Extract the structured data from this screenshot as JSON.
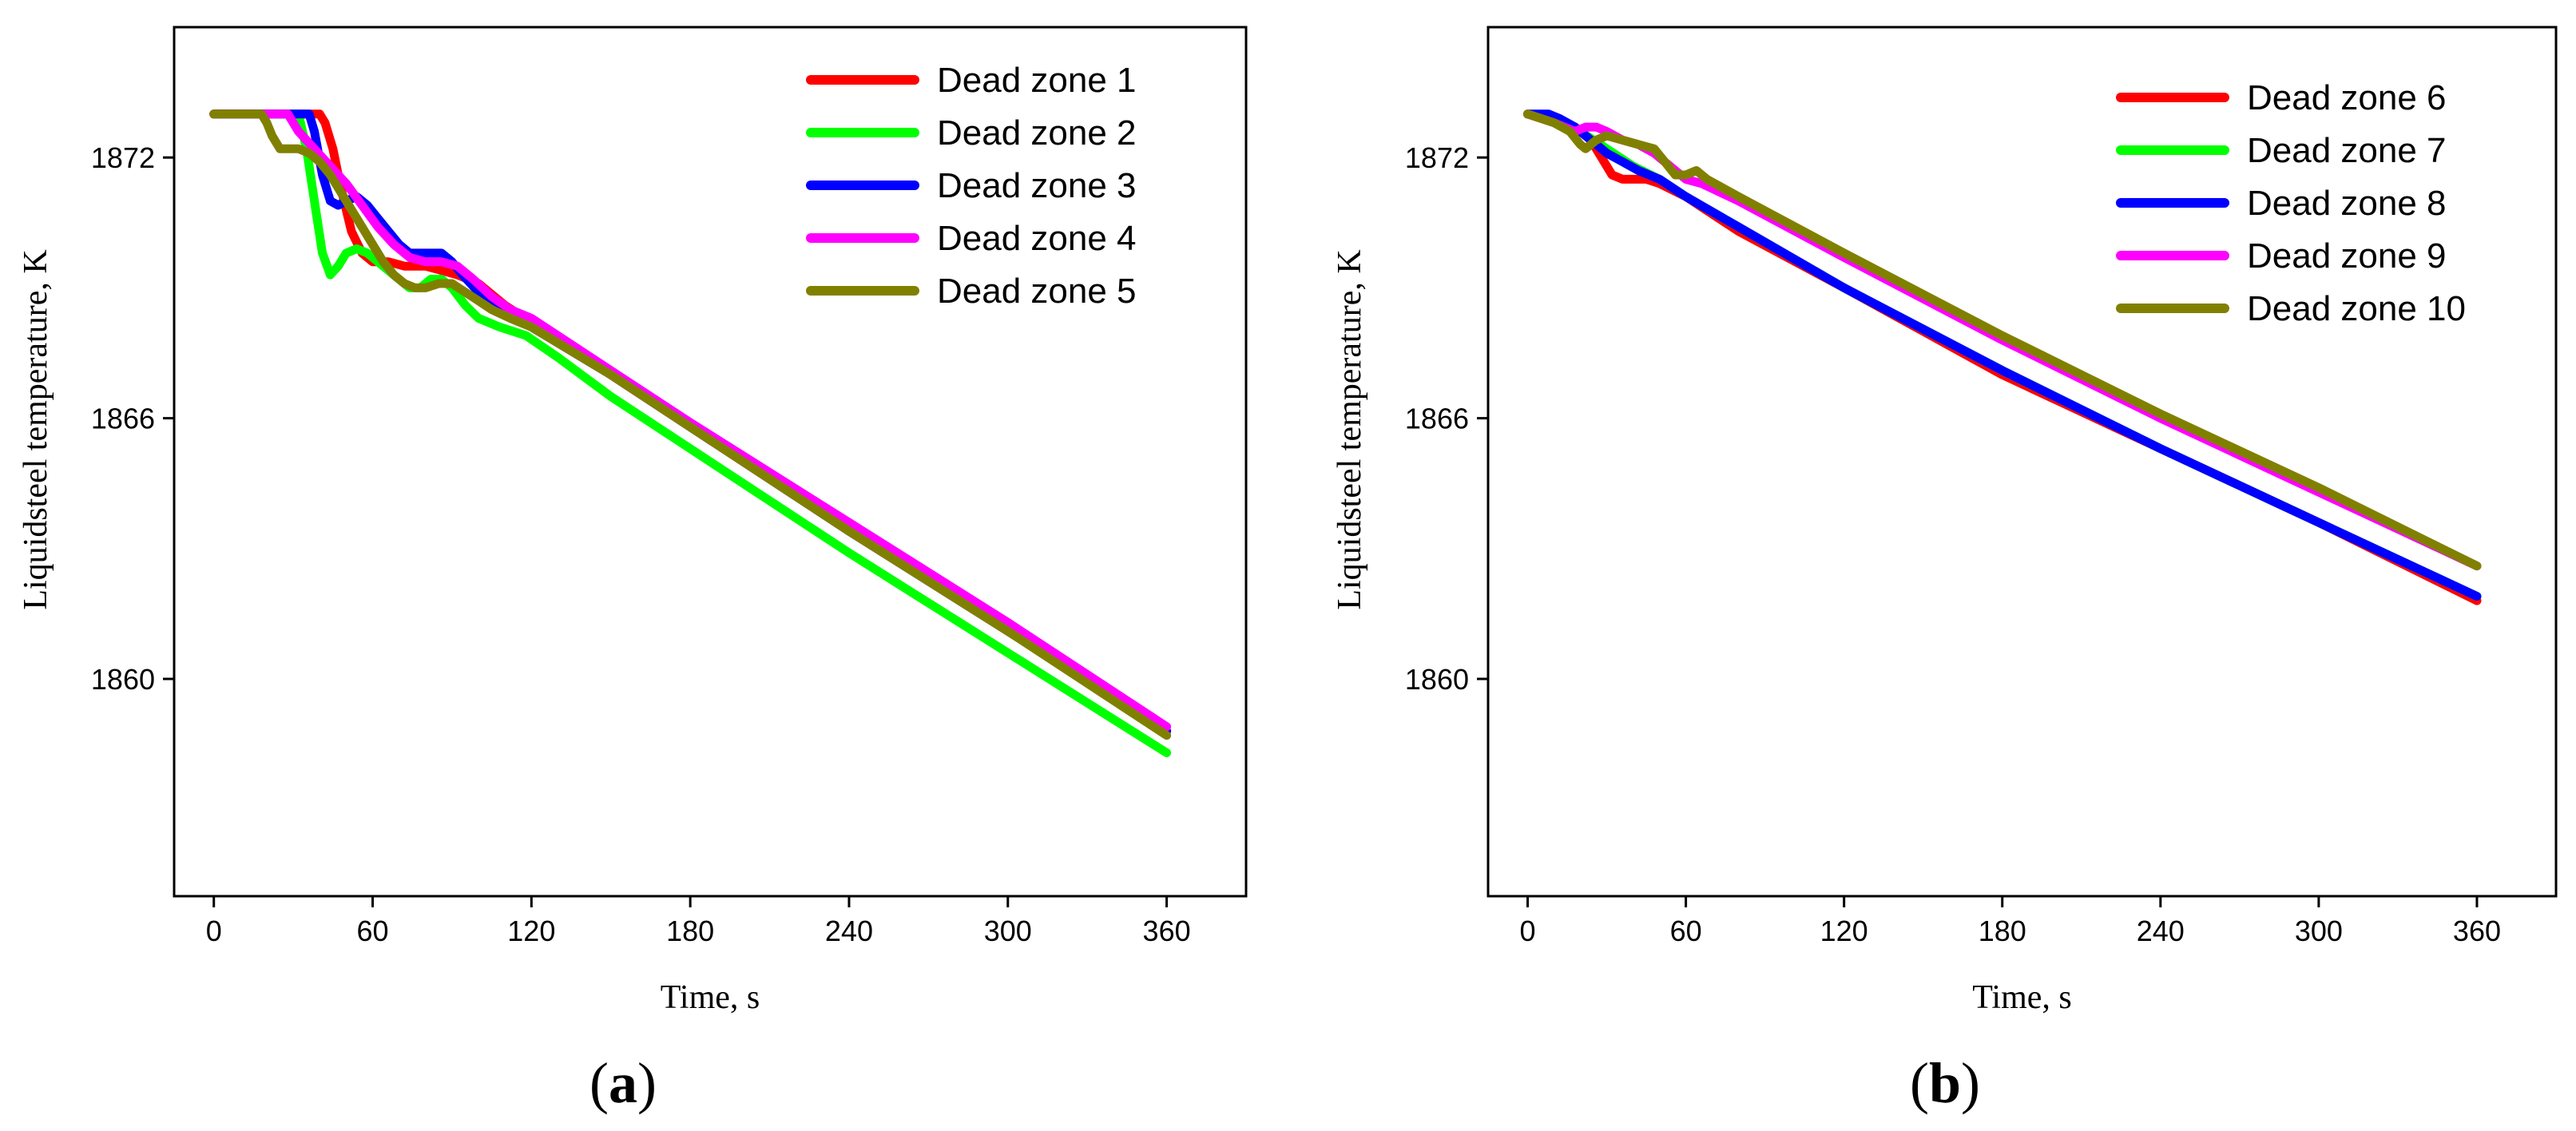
{
  "chart_data": [
    {
      "type": "line",
      "panel_label": "a",
      "xlabel": "Time, s",
      "ylabel": "Liquidsteel temperature, K",
      "xlim": [
        -15,
        390
      ],
      "ylim": [
        1855,
        1875
      ],
      "xticks": [
        0,
        60,
        120,
        180,
        240,
        300,
        360
      ],
      "xtick_labels": [
        "0",
        "60",
        "120",
        "180",
        "240",
        "300",
        "360"
      ],
      "yticks": [
        1860,
        1866,
        1872
      ],
      "ytick_labels": [
        "1860",
        "1866",
        "1872"
      ],
      "legend": "top-right",
      "series": [
        {
          "name": "Dead zone 1",
          "color": "#ff0000",
          "x": [
            0,
            40,
            42,
            45,
            48,
            52,
            56,
            60,
            66,
            72,
            80,
            86,
            92,
            100,
            110,
            120,
            150,
            180,
            240,
            300,
            360
          ],
          "y": [
            1873,
            1873,
            1872.8,
            1872.2,
            1871.3,
            1870.3,
            1869.8,
            1869.6,
            1869.6,
            1869.5,
            1869.5,
            1869.4,
            1869.3,
            1869.1,
            1868.6,
            1868.2,
            1867,
            1865.8,
            1863.4,
            1861.1,
            1858.8
          ]
        },
        {
          "name": "Dead zone 2",
          "color": "#00ff00",
          "x": [
            0,
            32,
            35,
            38,
            41,
            44,
            47,
            50,
            54,
            58,
            62,
            68,
            74,
            78,
            82,
            86,
            90,
            95,
            100,
            108,
            118,
            130,
            150,
            180,
            240,
            300,
            360
          ],
          "y": [
            1873,
            1873,
            1872.2,
            1871,
            1869.8,
            1869.3,
            1869.5,
            1869.8,
            1869.9,
            1869.8,
            1869.6,
            1869.3,
            1869,
            1869,
            1869.2,
            1869.2,
            1869,
            1868.6,
            1868.3,
            1868.1,
            1867.9,
            1867.4,
            1866.5,
            1865.3,
            1862.9,
            1860.6,
            1858.3
          ]
        },
        {
          "name": "Dead zone 3",
          "color": "#0000ff",
          "x": [
            0,
            36,
            38,
            41,
            44,
            47,
            50,
            54,
            58,
            62,
            66,
            70,
            74,
            78,
            82,
            86,
            90,
            94,
            100,
            110,
            120,
            150,
            180,
            240,
            300,
            360
          ],
          "y": [
            1873,
            1873,
            1872.6,
            1871.6,
            1871,
            1870.9,
            1871,
            1871.1,
            1870.9,
            1870.6,
            1870.3,
            1870,
            1869.8,
            1869.8,
            1869.8,
            1869.8,
            1869.6,
            1869.3,
            1868.9,
            1868.5,
            1868.1,
            1867,
            1865.8,
            1863.4,
            1861.1,
            1858.8
          ]
        },
        {
          "name": "Dead zone 4",
          "color": "#ff00ff",
          "x": [
            0,
            28,
            32,
            38,
            44,
            50,
            56,
            62,
            68,
            74,
            80,
            86,
            92,
            98,
            105,
            112,
            120,
            150,
            180,
            240,
            300,
            360
          ],
          "y": [
            1873,
            1873,
            1872.6,
            1872.2,
            1871.8,
            1871.4,
            1870.9,
            1870.4,
            1870,
            1869.7,
            1869.6,
            1869.6,
            1869.5,
            1869.2,
            1868.8,
            1868.5,
            1868.3,
            1867.1,
            1865.9,
            1863.6,
            1861.3,
            1858.9
          ]
        },
        {
          "name": "Dead zone 5",
          "color": "#808000",
          "x": [
            0,
            18,
            20,
            22,
            25,
            28,
            32,
            36,
            40,
            44,
            48,
            52,
            56,
            60,
            64,
            68,
            72,
            76,
            80,
            85,
            90,
            95,
            100,
            105,
            112,
            120,
            150,
            180,
            240,
            300,
            360
          ],
          "y": [
            1873,
            1873,
            1872.8,
            1872.5,
            1872.2,
            1872.2,
            1872.2,
            1872.1,
            1871.9,
            1871.6,
            1871.2,
            1870.8,
            1870.4,
            1870,
            1869.6,
            1869.3,
            1869.1,
            1869,
            1869,
            1869.1,
            1869.1,
            1868.9,
            1868.7,
            1868.5,
            1868.3,
            1868.1,
            1867,
            1865.8,
            1863.4,
            1861.1,
            1858.7
          ]
        }
      ]
    },
    {
      "type": "line",
      "panel_label": "b",
      "xlabel": "Time, s",
      "ylabel": "Liquidsteel temperature, K",
      "xlim": [
        -15,
        390
      ],
      "ylim": [
        1855,
        1875
      ],
      "xticks": [
        0,
        60,
        120,
        180,
        240,
        300,
        360
      ],
      "xtick_labels": [
        "0",
        "60",
        "120",
        "180",
        "240",
        "300",
        "360"
      ],
      "yticks": [
        1860,
        1866,
        1872
      ],
      "ytick_labels": [
        "1860",
        "1866",
        "1872"
      ],
      "legend": "top-right",
      "series": [
        {
          "name": "Dead zone 6",
          "color": "#ff0000",
          "x": [
            0,
            10,
            18,
            24,
            28,
            32,
            36,
            40,
            45,
            50,
            60,
            80,
            120,
            180,
            240,
            300,
            360
          ],
          "y": [
            1873,
            1872.9,
            1872.7,
            1872.4,
            1872,
            1871.6,
            1871.5,
            1871.5,
            1871.5,
            1871.4,
            1871.1,
            1870.3,
            1869,
            1867,
            1865.3,
            1863.6,
            1861.8
          ]
        },
        {
          "name": "Dead zone 7",
          "color": "#00ff00",
          "x": [
            0,
            10,
            20,
            30,
            40,
            50,
            60,
            80,
            120,
            180,
            240,
            300,
            360
          ],
          "y": [
            1873,
            1872.9,
            1872.6,
            1872.2,
            1871.8,
            1871.5,
            1871.1,
            1870.4,
            1869,
            1867.1,
            1865.3,
            1863.6,
            1861.9
          ]
        },
        {
          "name": "Dead zone 8",
          "color": "#0000ff",
          "x": [
            0,
            8,
            12,
            18,
            24,
            30,
            36,
            42,
            50,
            60,
            80,
            120,
            180,
            240,
            300,
            360
          ],
          "y": [
            1873,
            1873,
            1872.9,
            1872.7,
            1872.4,
            1872.1,
            1871.9,
            1871.7,
            1871.5,
            1871.1,
            1870.4,
            1869,
            1867.1,
            1865.3,
            1863.6,
            1861.9
          ]
        },
        {
          "name": "Dead zone 9",
          "color": "#ff00ff",
          "x": [
            0,
            10,
            18,
            22,
            26,
            30,
            36,
            42,
            48,
            54,
            60,
            66,
            80,
            120,
            180,
            240,
            300,
            360
          ],
          "y": [
            1873,
            1872.8,
            1872.6,
            1872.7,
            1872.7,
            1872.6,
            1872.4,
            1872.3,
            1872.1,
            1871.8,
            1871.5,
            1871.4,
            1871,
            1869.7,
            1867.8,
            1866,
            1864.3,
            1862.6
          ]
        },
        {
          "name": "Dead zone 10",
          "color": "#808000",
          "x": [
            0,
            10,
            16,
            20,
            22,
            26,
            30,
            36,
            42,
            48,
            52,
            56,
            60,
            64,
            68,
            80,
            120,
            180,
            240,
            300,
            360
          ],
          "y": [
            1873,
            1872.8,
            1872.6,
            1872.3,
            1872.2,
            1872.4,
            1872.5,
            1872.4,
            1872.3,
            1872.2,
            1871.9,
            1871.6,
            1871.6,
            1871.7,
            1871.5,
            1871.1,
            1869.8,
            1867.9,
            1866.1,
            1864.4,
            1862.6
          ]
        }
      ]
    }
  ]
}
